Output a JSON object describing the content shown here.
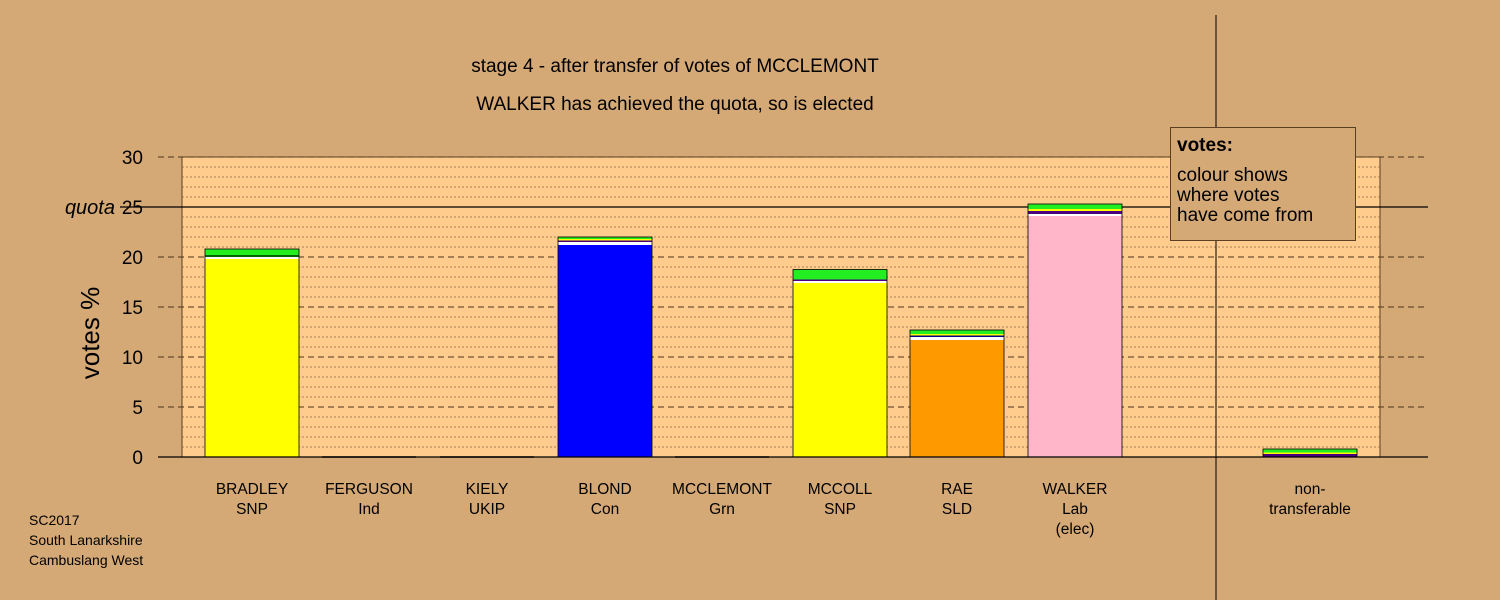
{
  "chart_data": {
    "type": "bar",
    "stacked": true,
    "title": "stage 4 - after transfer of votes of MCCLEMONT",
    "subtitle": "WALKER has achieved the quota, so is elected",
    "ylabel": "votes %",
    "ylim": [
      0,
      30
    ],
    "yticks": [
      "0",
      "5",
      "10",
      "15",
      "20",
      "25",
      "30"
    ],
    "quota": {
      "label": "quota",
      "value": 25
    },
    "grid": true,
    "categories": [
      {
        "name": "BRADLEY",
        "party": "SNP",
        "note": ""
      },
      {
        "name": "FERGUSON",
        "party": "Ind",
        "note": ""
      },
      {
        "name": "KIELY",
        "party": "UKIP",
        "note": ""
      },
      {
        "name": "BLOND",
        "party": "Con",
        "note": ""
      },
      {
        "name": "MCCLEMONT",
        "party": "Grn",
        "note": ""
      },
      {
        "name": "MCCOLL",
        "party": "SNP",
        "note": ""
      },
      {
        "name": "RAE",
        "party": "SLD",
        "note": ""
      },
      {
        "name": "WALKER",
        "party": "Lab",
        "note": "(elec)"
      },
      {
        "name": "non-",
        "party": "transferable",
        "note": ""
      }
    ],
    "bars": [
      [
        {
          "color": "#ffff00",
          "value": 19.8
        },
        {
          "color": "#ffffff",
          "value": 0.2
        },
        {
          "color": "#006400",
          "value": 0.2
        },
        {
          "color": "#22ee22",
          "value": 0.6
        }
      ],
      [],
      [],
      [
        {
          "color": "#0000ff",
          "value": 21.2
        },
        {
          "color": "#ffffff",
          "value": 0.3
        },
        {
          "color": "#4b0082",
          "value": 0.15
        },
        {
          "color": "#ffff00",
          "value": 0.15
        },
        {
          "color": "#22ee22",
          "value": 0.2
        }
      ],
      [],
      [
        {
          "color": "#ffff00",
          "value": 17.4
        },
        {
          "color": "#ffffff",
          "value": 0.2
        },
        {
          "color": "#4b0082",
          "value": 0.15
        },
        {
          "color": "#22ee22",
          "value": 1.0
        }
      ],
      [
        {
          "color": "#ff9900",
          "value": 11.7
        },
        {
          "color": "#ffffff",
          "value": 0.3
        },
        {
          "color": "#000080",
          "value": 0.15
        },
        {
          "color": "#ffff00",
          "value": 0.15
        },
        {
          "color": "#22ee22",
          "value": 0.4
        }
      ],
      [
        {
          "color": "#ffb6c8",
          "value": 24.1
        },
        {
          "color": "#ffffff",
          "value": 0.2
        },
        {
          "color": "#4b0082",
          "value": 0.3
        },
        {
          "color": "#ffff00",
          "value": 0.2
        },
        {
          "color": "#22ee22",
          "value": 0.5
        }
      ],
      [
        {
          "color": "#4b0082",
          "value": 0.3
        },
        {
          "color": "#ffff00",
          "value": 0.15
        },
        {
          "color": "#22ee22",
          "value": 0.35
        }
      ]
    ],
    "legend": {
      "title": "votes:",
      "lines": [
        "colour shows",
        "where votes",
        "have come from"
      ],
      "position": "top-right"
    }
  },
  "footer": {
    "lines": [
      "SC2017",
      "South Lanarkshire",
      "Cambuslang West"
    ]
  }
}
